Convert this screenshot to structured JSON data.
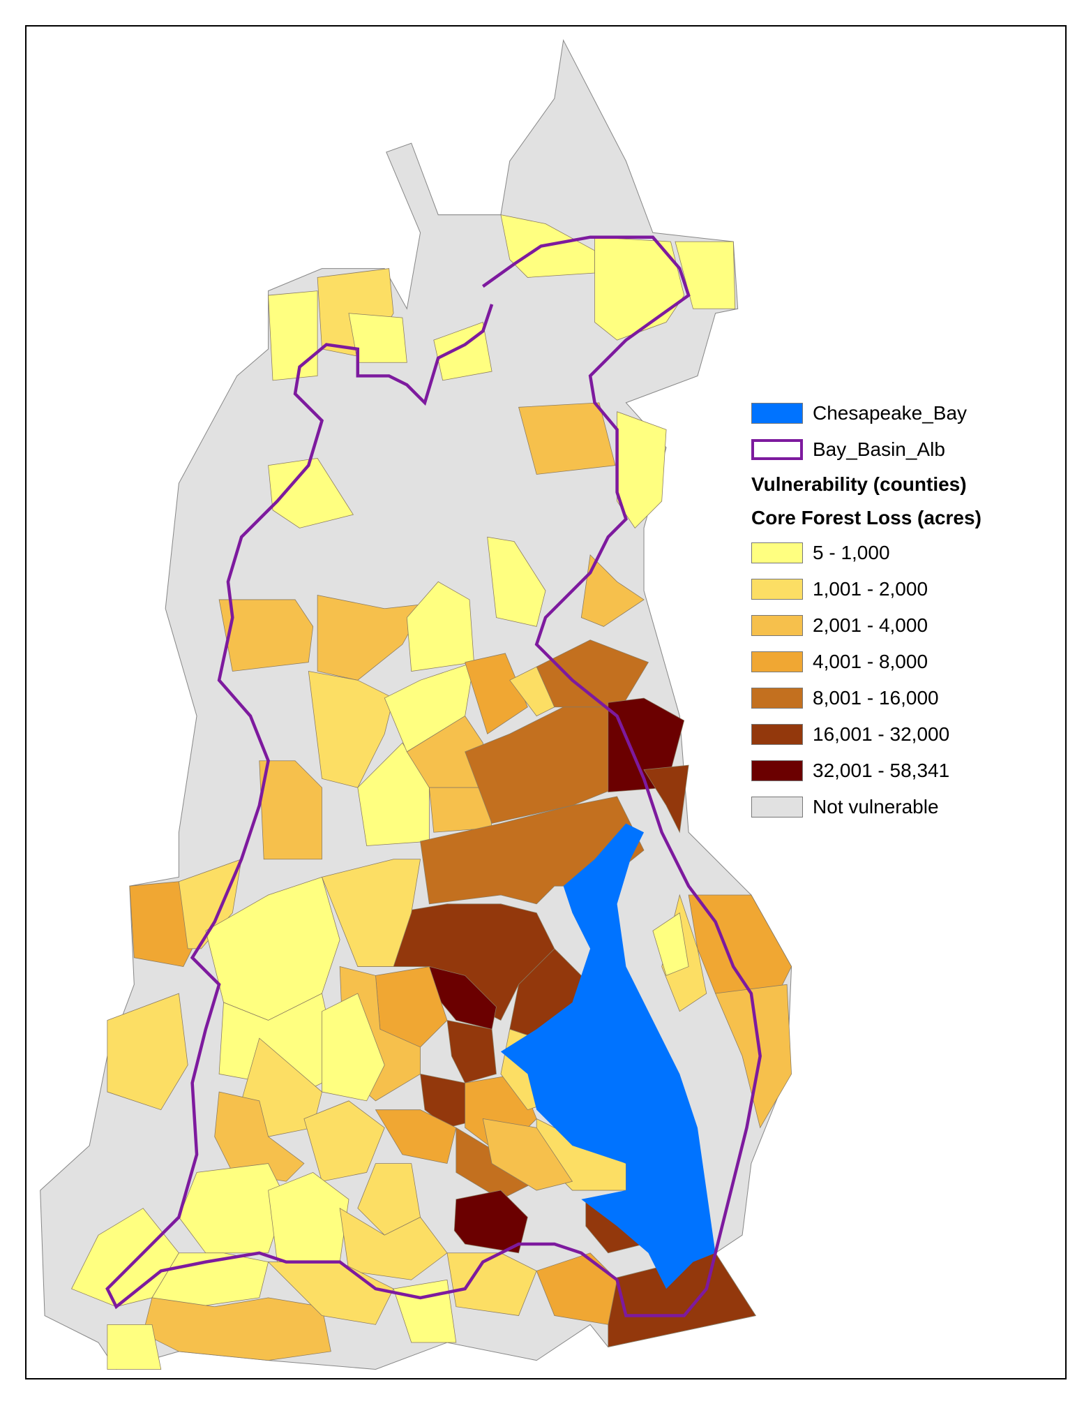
{
  "legend": {
    "bay": {
      "label": "Chesapeake_Bay",
      "color": "#0073ff"
    },
    "basin": {
      "label": "Bay_Basin_Alb",
      "color": "#7d1a9e"
    },
    "heading1": "Vulnerability (counties)",
    "heading2": "Core Forest Loss (acres)",
    "classes": [
      {
        "label": "5 - 1,000",
        "color": "#ffff80"
      },
      {
        "label": "1,001 - 2,000",
        "color": "#fcde64"
      },
      {
        "label": "2,001 - 4,000",
        "color": "#f6c04c"
      },
      {
        "label": "4,001 - 8,000",
        "color": "#f0a733"
      },
      {
        "label": "8,001 - 16,000",
        "color": "#c3701f"
      },
      {
        "label": "16,001 - 32,000",
        "color": "#93380c"
      },
      {
        "label": "32,001 - 58,341",
        "color": "#6b0000"
      },
      {
        "label": "Not vulnerable",
        "color": "#e1e1e1"
      }
    ]
  }
}
